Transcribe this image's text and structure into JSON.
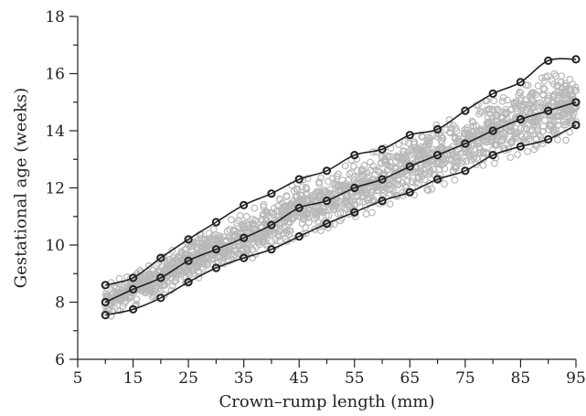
{
  "chart_data": {
    "type": "scatter",
    "title": "",
    "xlabel": "Crown–rump length (mm)",
    "ylabel": "Gestational age (weeks)",
    "xlim": [
      5,
      95
    ],
    "ylim": [
      6,
      18
    ],
    "xticks": [
      "5",
      "15",
      "25",
      "35",
      "45",
      "55",
      "65",
      "75",
      "85",
      "95"
    ],
    "yticks": [
      "6",
      "8",
      "10",
      "12",
      "14",
      "16",
      "18"
    ],
    "x_minor_step": 5,
    "y_minor_step": 1,
    "grid": false,
    "legend": "none",
    "scatter_color": "#b8b8b8",
    "line_color": "#222222",
    "scatter_band": {
      "x_range": [
        10,
        95
      ],
      "center": [
        [
          10,
          8.0
        ],
        [
          15,
          8.45
        ],
        [
          20,
          8.85
        ],
        [
          25,
          9.45
        ],
        [
          30,
          9.85
        ],
        [
          35,
          10.25
        ],
        [
          40,
          10.7
        ],
        [
          45,
          11.3
        ],
        [
          50,
          11.55
        ],
        [
          55,
          12.0
        ],
        [
          60,
          12.3
        ],
        [
          65,
          12.75
        ],
        [
          70,
          13.15
        ],
        [
          75,
          13.55
        ],
        [
          80,
          14.0
        ],
        [
          85,
          14.4
        ],
        [
          90,
          14.7
        ],
        [
          95,
          15.0
        ]
      ],
      "half_width": [
        [
          10,
          0.45
        ],
        [
          50,
          0.8
        ],
        [
          95,
          1.0
        ]
      ]
    },
    "series": [
      {
        "x": [
          10,
          15,
          20,
          25,
          30,
          35,
          40,
          45,
          50,
          55,
          60,
          65,
          70,
          75,
          80,
          85,
          90,
          95
        ],
        "y": [
          7.55,
          7.75,
          8.15,
          8.7,
          9.2,
          9.55,
          9.85,
          10.3,
          10.75,
          11.15,
          11.55,
          11.85,
          12.3,
          12.6,
          13.15,
          13.45,
          13.7,
          14.2
        ]
      },
      {
        "x": [
          10,
          15,
          20,
          25,
          30,
          35,
          40,
          45,
          50,
          55,
          60,
          65,
          70,
          75,
          80,
          85,
          90,
          95
        ],
        "y": [
          8.0,
          8.45,
          8.85,
          9.45,
          9.85,
          10.25,
          10.7,
          11.3,
          11.55,
          12.0,
          12.3,
          12.75,
          13.15,
          13.55,
          14.0,
          14.4,
          14.7,
          15.0
        ]
      },
      {
        "x": [
          10,
          15,
          20,
          25,
          30,
          35,
          40,
          45,
          50,
          55,
          60,
          65,
          70,
          75,
          80,
          85,
          90,
          95
        ],
        "y": [
          8.6,
          8.85,
          9.55,
          10.2,
          10.8,
          11.4,
          11.8,
          12.3,
          12.6,
          13.15,
          13.35,
          13.85,
          14.05,
          14.7,
          15.3,
          15.7,
          16.45,
          16.5
        ]
      }
    ]
  }
}
